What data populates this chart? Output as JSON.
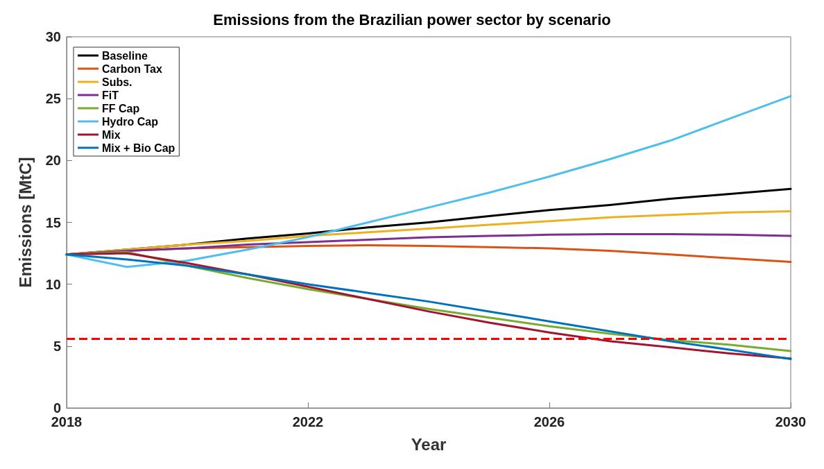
{
  "chart_data": {
    "type": "line",
    "title": "Emissions from the Brazilian power sector by scenario",
    "xlabel": "Year",
    "ylabel": "Emissions [MtC]",
    "x": [
      2018,
      2019,
      2020,
      2021,
      2022,
      2023,
      2024,
      2025,
      2026,
      2027,
      2028,
      2029,
      2030
    ],
    "xlim": [
      2018,
      2030
    ],
    "xticks": [
      2018,
      2022,
      2026,
      2030
    ],
    "ylim": [
      0,
      30
    ],
    "yticks": [
      0,
      5,
      10,
      15,
      20,
      25,
      30
    ],
    "grid": false,
    "legend": "top left",
    "marker": "none",
    "line_style": "solid",
    "series": [
      {
        "name": "Baseline",
        "color": "#000000",
        "values": [
          12.4,
          12.8,
          13.2,
          13.7,
          14.1,
          14.6,
          15.0,
          15.5,
          16.0,
          16.4,
          16.9,
          17.3,
          17.7
        ]
      },
      {
        "name": "Carbon Tax",
        "color": "#d95319",
        "values": [
          12.4,
          12.7,
          12.9,
          13.0,
          13.1,
          13.15,
          13.1,
          13.0,
          12.9,
          12.7,
          12.4,
          12.1,
          11.8
        ]
      },
      {
        "name": "Subs.",
        "color": "#edb120",
        "values": [
          12.4,
          12.8,
          13.2,
          13.5,
          13.9,
          14.2,
          14.5,
          14.8,
          15.1,
          15.4,
          15.6,
          15.8,
          15.9
        ]
      },
      {
        "name": "FiT",
        "color": "#7e2f8e",
        "values": [
          12.4,
          12.7,
          12.9,
          13.2,
          13.4,
          13.6,
          13.8,
          13.9,
          14.0,
          14.05,
          14.05,
          14.0,
          13.9
        ]
      },
      {
        "name": "FF Cap",
        "color": "#77ac30",
        "values": [
          12.4,
          12.6,
          11.5,
          10.5,
          9.6,
          8.8,
          8.0,
          7.3,
          6.6,
          6.0,
          5.5,
          5.1,
          4.6
        ]
      },
      {
        "name": "Hydro Cap",
        "color": "#4dbeee",
        "values": [
          12.4,
          11.4,
          11.9,
          12.8,
          13.8,
          15.0,
          16.2,
          17.4,
          18.7,
          20.1,
          21.6,
          23.4,
          25.2
        ]
      },
      {
        "name": "Mix",
        "color": "#a2142f",
        "values": [
          12.4,
          12.5,
          11.7,
          10.8,
          9.8,
          8.8,
          7.8,
          6.9,
          6.1,
          5.4,
          4.9,
          4.4,
          4.0
        ]
      },
      {
        "name": "Mix + Bio Cap",
        "color": "#0072bd",
        "values": [
          12.4,
          12.0,
          11.5,
          10.8,
          10.0,
          9.3,
          8.6,
          7.8,
          7.0,
          6.2,
          5.4,
          4.7,
          3.95
        ]
      }
    ],
    "ref_lines": [
      {
        "axis": "y",
        "value": 5.6,
        "color": "#ff0000",
        "line_style": "dashed"
      }
    ]
  }
}
